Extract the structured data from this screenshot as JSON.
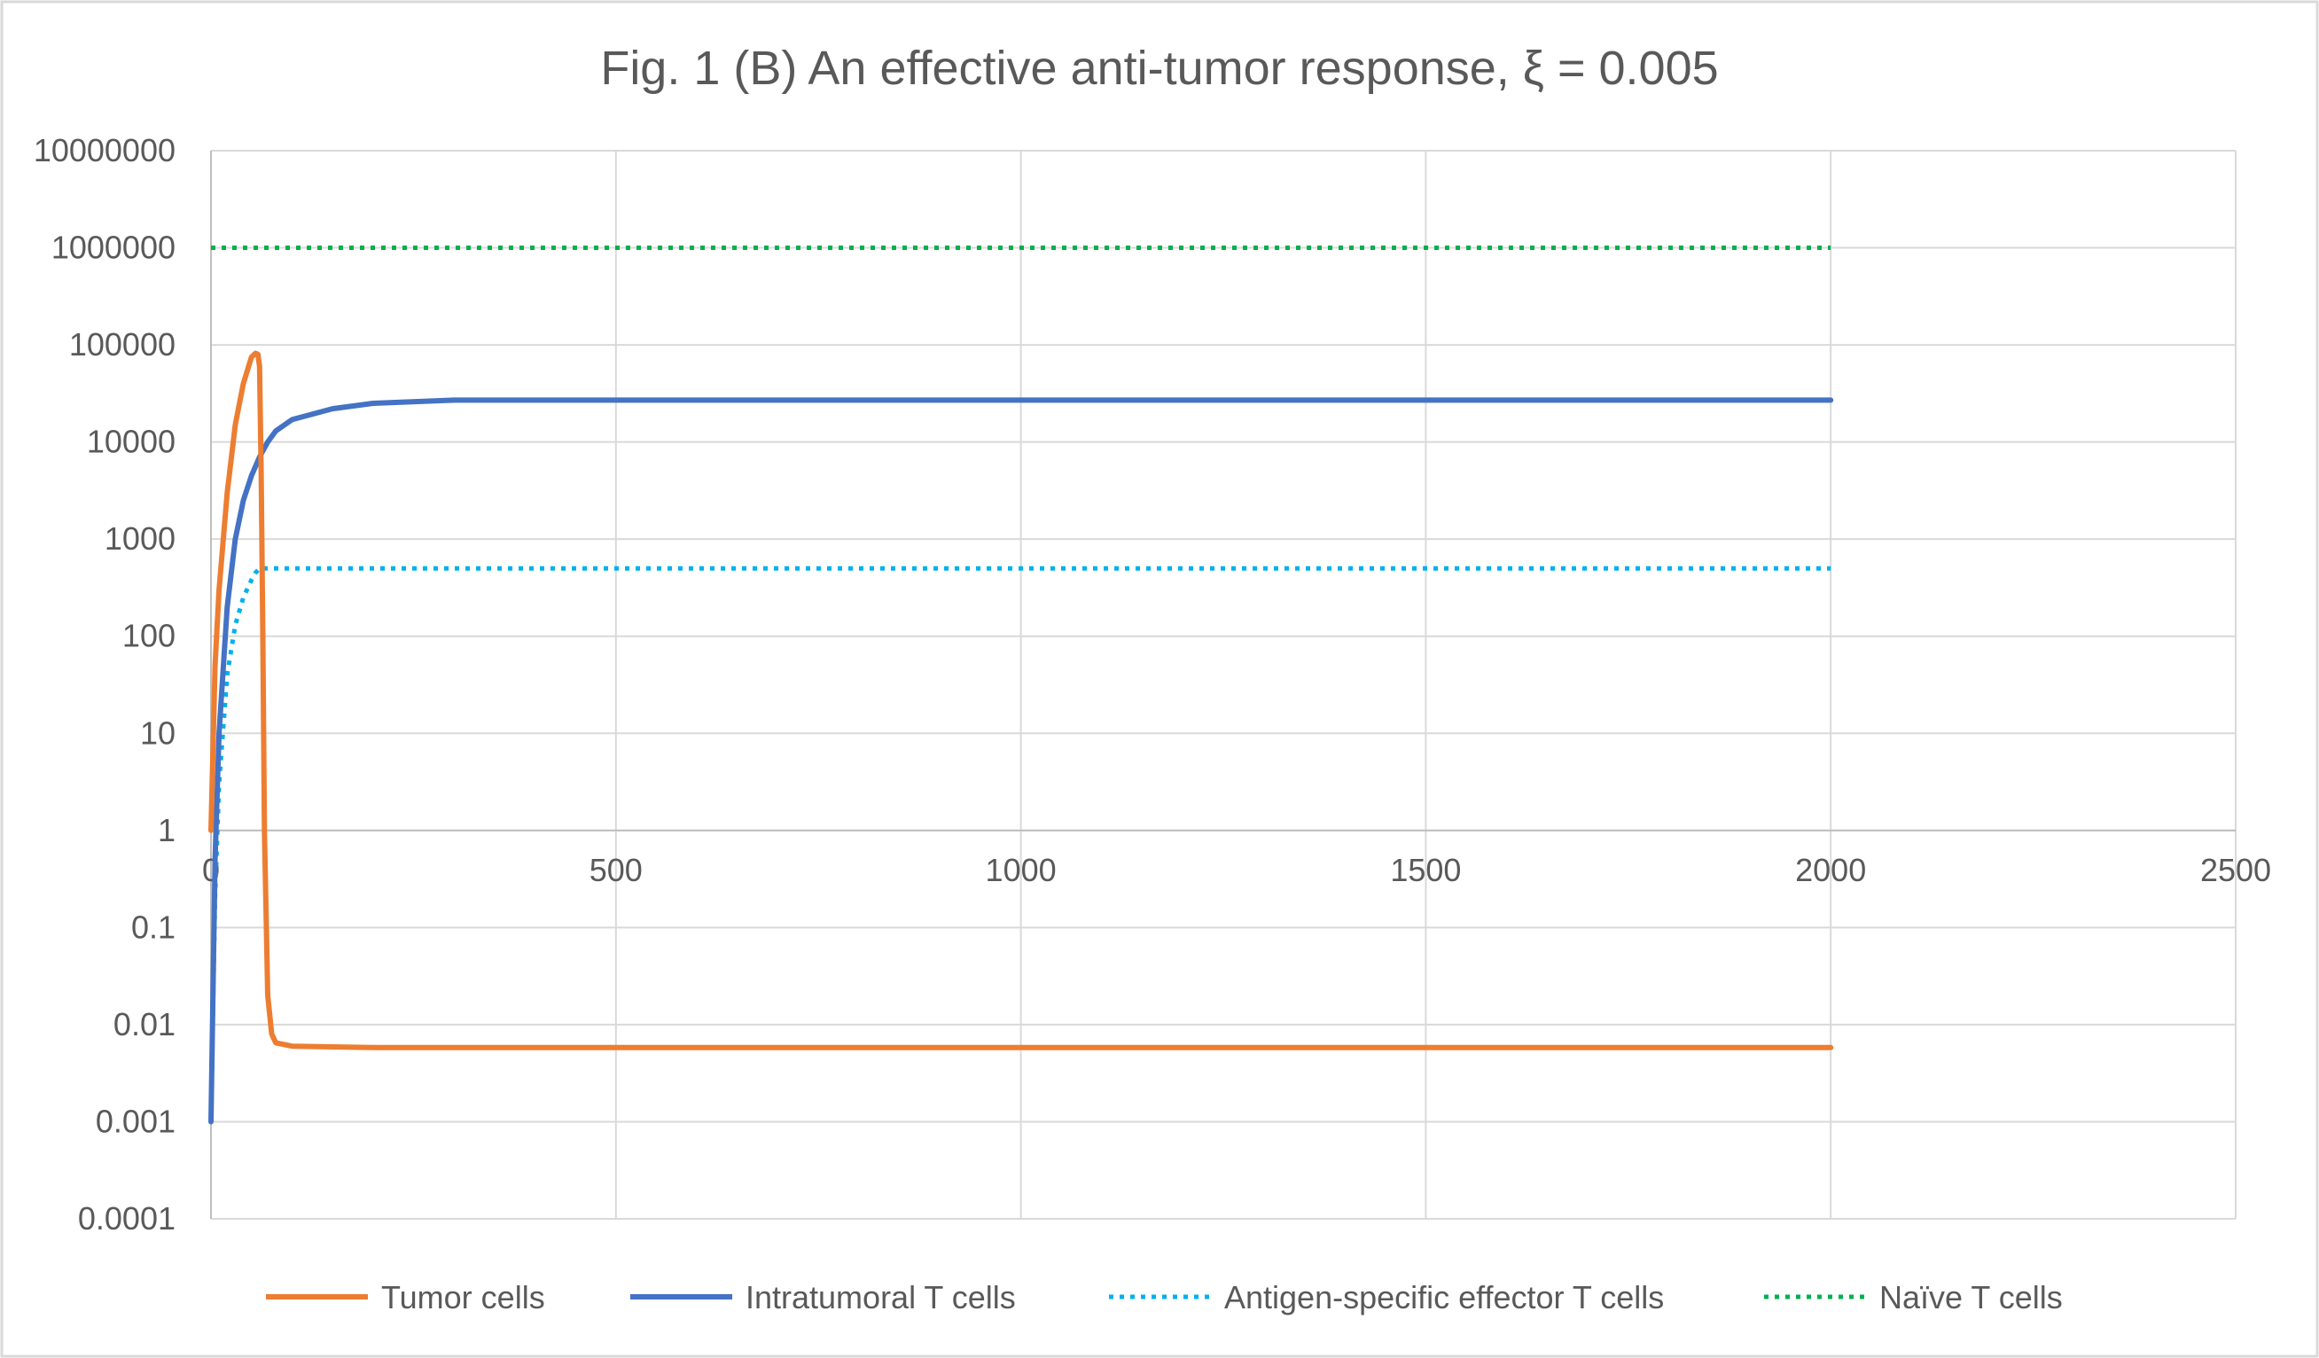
{
  "chart_data": {
    "type": "line",
    "title": "Fig. 1 (B) An effective anti-tumor response, ξ = 0.005",
    "xlabel": "",
    "ylabel": "",
    "y_scale": "log",
    "xlim": [
      0,
      2500
    ],
    "ylim": [
      0.0001,
      10000000
    ],
    "x_ticks": [
      "0",
      "500",
      "1000",
      "1500",
      "2000",
      "2500"
    ],
    "y_ticks": [
      "10000000",
      "1000000",
      "100000",
      "10000",
      "1000",
      "100",
      "10",
      "1",
      "0.1",
      "0.01",
      "0.001",
      "0.0001"
    ],
    "grid": true,
    "legend_position": "bottom",
    "series": [
      {
        "name": "Tumor cells",
        "color": "#ED7D31",
        "style": "solid",
        "x": [
          0,
          5,
          10,
          20,
          30,
          40,
          50,
          55,
          58,
          60,
          62,
          64,
          66,
          70,
          75,
          80,
          100,
          200,
          500,
          1000,
          1500,
          2000
        ],
        "y": [
          1,
          50,
          300,
          3000,
          15000,
          40000,
          75000,
          82000,
          80000,
          60000,
          5000,
          100,
          1,
          0.02,
          0.008,
          0.0065,
          0.006,
          0.0058,
          0.0058,
          0.0058,
          0.0058,
          0.0058
        ]
      },
      {
        "name": "Intratumoral T cells",
        "color": "#4472C4",
        "style": "solid",
        "x": [
          0,
          5,
          10,
          20,
          30,
          40,
          50,
          60,
          70,
          80,
          100,
          150,
          200,
          300,
          500,
          1000,
          1500,
          2000
        ],
        "y": [
          0.001,
          0.5,
          10,
          200,
          1000,
          2500,
          4500,
          7000,
          10000,
          13000,
          17000,
          22000,
          25000,
          27000,
          27000,
          27000,
          27000,
          27000
        ]
      },
      {
        "name": "Antigen-specific effector T cells",
        "color": "#00B0F0",
        "style": "dotted",
        "x": [
          0,
          5,
          10,
          20,
          30,
          40,
          50,
          55,
          60,
          70,
          100,
          500,
          1000,
          1500,
          2000
        ],
        "y": [
          0.001,
          0.2,
          3,
          40,
          130,
          250,
          380,
          450,
          500,
          500,
          500,
          500,
          500,
          500,
          500
        ]
      },
      {
        "name": "Naïve T cells",
        "color": "#00B050",
        "style": "dotted",
        "x": [
          0,
          500,
          1000,
          1500,
          2000
        ],
        "y": [
          1000000,
          1000000,
          1000000,
          1000000,
          1000000
        ]
      }
    ]
  }
}
